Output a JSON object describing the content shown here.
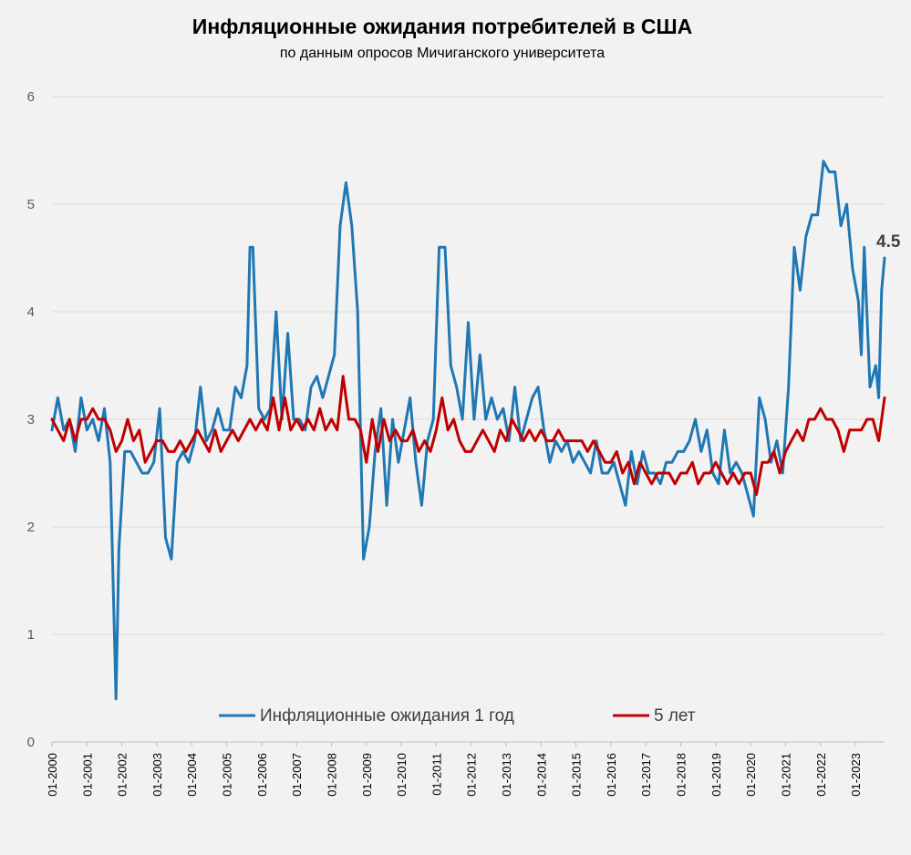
{
  "chart_data": {
    "type": "line",
    "title": "Инфляционные ожидания потребителей в США",
    "subtitle": "по данным опросов Мичиганского университета",
    "ylim": [
      0,
      6
    ],
    "yticks": [
      0,
      1,
      2,
      3,
      4,
      5,
      6
    ],
    "x_tick_labels": [
      "01-2000",
      "01-2001",
      "01-2002",
      "01-2003",
      "01-2004",
      "01-2005",
      "01-2006",
      "01-2007",
      "01-2008",
      "01-2009",
      "01-2010",
      "01-2011",
      "01-2012",
      "01-2013",
      "01-2014",
      "01-2015",
      "01-2016",
      "01-2017",
      "01-2018",
      "01-2019",
      "01-2020",
      "01-2021",
      "01-2022",
      "01-2023"
    ],
    "x_start": "01-2000",
    "x_end": "11-2023",
    "grid": true,
    "legend_position": "bottom",
    "end_annotation": "4.5",
    "colors": {
      "one_year": "#1f77b4",
      "five_year": "#c00000"
    },
    "series": [
      {
        "name": "Инфляционные ожидания 1 год",
        "points": [
          [
            "2000-01",
            2.9
          ],
          [
            "2000-03",
            3.2
          ],
          [
            "2000-05",
            2.9
          ],
          [
            "2000-07",
            3.0
          ],
          [
            "2000-09",
            2.7
          ],
          [
            "2000-11",
            3.2
          ],
          [
            "2001-01",
            2.9
          ],
          [
            "2001-03",
            3.0
          ],
          [
            "2001-05",
            2.8
          ],
          [
            "2001-07",
            3.1
          ],
          [
            "2001-09",
            2.6
          ],
          [
            "2001-11",
            0.4
          ],
          [
            "2001-12",
            1.8
          ],
          [
            "2002-02",
            2.7
          ],
          [
            "2002-04",
            2.7
          ],
          [
            "2002-06",
            2.6
          ],
          [
            "2002-08",
            2.5
          ],
          [
            "2002-10",
            2.5
          ],
          [
            "2002-12",
            2.6
          ],
          [
            "2003-02",
            3.1
          ],
          [
            "2003-04",
            1.9
          ],
          [
            "2003-06",
            1.7
          ],
          [
            "2003-08",
            2.6
          ],
          [
            "2003-10",
            2.7
          ],
          [
            "2003-12",
            2.6
          ],
          [
            "2004-02",
            2.8
          ],
          [
            "2004-04",
            3.3
          ],
          [
            "2004-06",
            2.8
          ],
          [
            "2004-08",
            2.9
          ],
          [
            "2004-10",
            3.1
          ],
          [
            "2004-12",
            2.9
          ],
          [
            "2005-02",
            2.9
          ],
          [
            "2005-04",
            3.3
          ],
          [
            "2005-06",
            3.2
          ],
          [
            "2005-08",
            3.5
          ],
          [
            "2005-09",
            4.6
          ],
          [
            "2005-10",
            4.6
          ],
          [
            "2005-12",
            3.1
          ],
          [
            "2006-02",
            3.0
          ],
          [
            "2006-04",
            3.1
          ],
          [
            "2006-06",
            4.0
          ],
          [
            "2006-08",
            3.0
          ],
          [
            "2006-10",
            3.8
          ],
          [
            "2006-12",
            3.0
          ],
          [
            "2007-02",
            3.0
          ],
          [
            "2007-04",
            2.9
          ],
          [
            "2007-06",
            3.3
          ],
          [
            "2007-08",
            3.4
          ],
          [
            "2007-10",
            3.2
          ],
          [
            "2007-12",
            3.4
          ],
          [
            "2008-02",
            3.6
          ],
          [
            "2008-04",
            4.8
          ],
          [
            "2008-06",
            5.2
          ],
          [
            "2008-08",
            4.8
          ],
          [
            "2008-10",
            4.0
          ],
          [
            "2008-12",
            1.7
          ],
          [
            "2009-02",
            2.0
          ],
          [
            "2009-04",
            2.7
          ],
          [
            "2009-06",
            3.1
          ],
          [
            "2009-08",
            2.2
          ],
          [
            "2009-10",
            3.0
          ],
          [
            "2009-12",
            2.6
          ],
          [
            "2010-02",
            2.9
          ],
          [
            "2010-04",
            3.2
          ],
          [
            "2010-06",
            2.6
          ],
          [
            "2010-08",
            2.2
          ],
          [
            "2010-10",
            2.8
          ],
          [
            "2010-12",
            3.0
          ],
          [
            "2011-02",
            4.6
          ],
          [
            "2011-04",
            4.6
          ],
          [
            "2011-06",
            3.5
          ],
          [
            "2011-08",
            3.3
          ],
          [
            "2011-10",
            3.0
          ],
          [
            "2011-12",
            3.9
          ],
          [
            "2012-02",
            3.0
          ],
          [
            "2012-04",
            3.6
          ],
          [
            "2012-06",
            3.0
          ],
          [
            "2012-08",
            3.2
          ],
          [
            "2012-10",
            3.0
          ],
          [
            "2012-12",
            3.1
          ],
          [
            "2013-02",
            2.8
          ],
          [
            "2013-04",
            3.3
          ],
          [
            "2013-06",
            2.8
          ],
          [
            "2013-08",
            3.0
          ],
          [
            "2013-10",
            3.2
          ],
          [
            "2013-12",
            3.3
          ],
          [
            "2014-02",
            2.9
          ],
          [
            "2014-04",
            2.6
          ],
          [
            "2014-06",
            2.8
          ],
          [
            "2014-08",
            2.7
          ],
          [
            "2014-10",
            2.8
          ],
          [
            "2014-12",
            2.6
          ],
          [
            "2015-02",
            2.7
          ],
          [
            "2015-04",
            2.6
          ],
          [
            "2015-06",
            2.5
          ],
          [
            "2015-08",
            2.8
          ],
          [
            "2015-10",
            2.5
          ],
          [
            "2015-12",
            2.5
          ],
          [
            "2016-02",
            2.6
          ],
          [
            "2016-04",
            2.4
          ],
          [
            "2016-06",
            2.2
          ],
          [
            "2016-08",
            2.7
          ],
          [
            "2016-10",
            2.4
          ],
          [
            "2016-12",
            2.7
          ],
          [
            "2017-02",
            2.5
          ],
          [
            "2017-04",
            2.5
          ],
          [
            "2017-06",
            2.4
          ],
          [
            "2017-08",
            2.6
          ],
          [
            "2017-10",
            2.6
          ],
          [
            "2017-12",
            2.7
          ],
          [
            "2018-02",
            2.7
          ],
          [
            "2018-04",
            2.8
          ],
          [
            "2018-06",
            3.0
          ],
          [
            "2018-08",
            2.7
          ],
          [
            "2018-10",
            2.9
          ],
          [
            "2018-12",
            2.5
          ],
          [
            "2019-02",
            2.4
          ],
          [
            "2019-04",
            2.9
          ],
          [
            "2019-06",
            2.5
          ],
          [
            "2019-08",
            2.6
          ],
          [
            "2019-10",
            2.5
          ],
          [
            "2019-12",
            2.3
          ],
          [
            "2020-02",
            2.1
          ],
          [
            "2020-04",
            3.2
          ],
          [
            "2020-06",
            3.0
          ],
          [
            "2020-08",
            2.6
          ],
          [
            "2020-10",
            2.8
          ],
          [
            "2020-12",
            2.5
          ],
          [
            "2021-02",
            3.3
          ],
          [
            "2021-04",
            4.6
          ],
          [
            "2021-06",
            4.2
          ],
          [
            "2021-08",
            4.7
          ],
          [
            "2021-10",
            4.9
          ],
          [
            "2021-12",
            4.9
          ],
          [
            "2022-02",
            5.4
          ],
          [
            "2022-04",
            5.3
          ],
          [
            "2022-06",
            5.3
          ],
          [
            "2022-08",
            4.8
          ],
          [
            "2022-10",
            5.0
          ],
          [
            "2022-12",
            4.4
          ],
          [
            "2023-02",
            4.1
          ],
          [
            "2023-03",
            3.6
          ],
          [
            "2023-04",
            4.6
          ],
          [
            "2023-06",
            3.3
          ],
          [
            "2023-08",
            3.5
          ],
          [
            "2023-09",
            3.2
          ],
          [
            "2023-10",
            4.2
          ],
          [
            "2023-11",
            4.5
          ]
        ]
      },
      {
        "name": "5 лет",
        "points": [
          [
            "2000-01",
            3.0
          ],
          [
            "2000-03",
            2.9
          ],
          [
            "2000-05",
            2.8
          ],
          [
            "2000-07",
            3.0
          ],
          [
            "2000-09",
            2.8
          ],
          [
            "2000-11",
            3.0
          ],
          [
            "2001-01",
            3.0
          ],
          [
            "2001-03",
            3.1
          ],
          [
            "2001-05",
            3.0
          ],
          [
            "2001-07",
            3.0
          ],
          [
            "2001-09",
            2.9
          ],
          [
            "2001-11",
            2.7
          ],
          [
            "2002-01",
            2.8
          ],
          [
            "2002-03",
            3.0
          ],
          [
            "2002-05",
            2.8
          ],
          [
            "2002-07",
            2.9
          ],
          [
            "2002-09",
            2.6
          ],
          [
            "2002-11",
            2.7
          ],
          [
            "2003-01",
            2.8
          ],
          [
            "2003-03",
            2.8
          ],
          [
            "2003-05",
            2.7
          ],
          [
            "2003-07",
            2.7
          ],
          [
            "2003-09",
            2.8
          ],
          [
            "2003-11",
            2.7
          ],
          [
            "2004-01",
            2.8
          ],
          [
            "2004-03",
            2.9
          ],
          [
            "2004-05",
            2.8
          ],
          [
            "2004-07",
            2.7
          ],
          [
            "2004-09",
            2.9
          ],
          [
            "2004-11",
            2.7
          ],
          [
            "2005-01",
            2.8
          ],
          [
            "2005-03",
            2.9
          ],
          [
            "2005-05",
            2.8
          ],
          [
            "2005-07",
            2.9
          ],
          [
            "2005-09",
            3.0
          ],
          [
            "2005-11",
            2.9
          ],
          [
            "2006-01",
            3.0
          ],
          [
            "2006-03",
            2.9
          ],
          [
            "2006-05",
            3.2
          ],
          [
            "2006-07",
            2.9
          ],
          [
            "2006-09",
            3.2
          ],
          [
            "2006-11",
            2.9
          ],
          [
            "2007-01",
            3.0
          ],
          [
            "2007-03",
            2.9
          ],
          [
            "2007-05",
            3.0
          ],
          [
            "2007-07",
            2.9
          ],
          [
            "2007-09",
            3.1
          ],
          [
            "2007-11",
            2.9
          ],
          [
            "2008-01",
            3.0
          ],
          [
            "2008-03",
            2.9
          ],
          [
            "2008-05",
            3.4
          ],
          [
            "2008-07",
            3.0
          ],
          [
            "2008-09",
            3.0
          ],
          [
            "2008-11",
            2.9
          ],
          [
            "2009-01",
            2.6
          ],
          [
            "2009-03",
            3.0
          ],
          [
            "2009-05",
            2.7
          ],
          [
            "2009-07",
            3.0
          ],
          [
            "2009-09",
            2.8
          ],
          [
            "2009-11",
            2.9
          ],
          [
            "2010-01",
            2.8
          ],
          [
            "2010-03",
            2.8
          ],
          [
            "2010-05",
            2.9
          ],
          [
            "2010-07",
            2.7
          ],
          [
            "2010-09",
            2.8
          ],
          [
            "2010-11",
            2.7
          ],
          [
            "2011-01",
            2.9
          ],
          [
            "2011-03",
            3.2
          ],
          [
            "2011-05",
            2.9
          ],
          [
            "2011-07",
            3.0
          ],
          [
            "2011-09",
            2.8
          ],
          [
            "2011-11",
            2.7
          ],
          [
            "2012-01",
            2.7
          ],
          [
            "2012-03",
            2.8
          ],
          [
            "2012-05",
            2.9
          ],
          [
            "2012-07",
            2.8
          ],
          [
            "2012-09",
            2.7
          ],
          [
            "2012-11",
            2.9
          ],
          [
            "2013-01",
            2.8
          ],
          [
            "2013-03",
            3.0
          ],
          [
            "2013-05",
            2.9
          ],
          [
            "2013-07",
            2.8
          ],
          [
            "2013-09",
            2.9
          ],
          [
            "2013-11",
            2.8
          ],
          [
            "2014-01",
            2.9
          ],
          [
            "2014-03",
            2.8
          ],
          [
            "2014-05",
            2.8
          ],
          [
            "2014-07",
            2.9
          ],
          [
            "2014-09",
            2.8
          ],
          [
            "2014-11",
            2.8
          ],
          [
            "2015-01",
            2.8
          ],
          [
            "2015-03",
            2.8
          ],
          [
            "2015-05",
            2.7
          ],
          [
            "2015-07",
            2.8
          ],
          [
            "2015-09",
            2.7
          ],
          [
            "2015-11",
            2.6
          ],
          [
            "2016-01",
            2.6
          ],
          [
            "2016-03",
            2.7
          ],
          [
            "2016-05",
            2.5
          ],
          [
            "2016-07",
            2.6
          ],
          [
            "2016-09",
            2.4
          ],
          [
            "2016-11",
            2.6
          ],
          [
            "2017-01",
            2.5
          ],
          [
            "2017-03",
            2.4
          ],
          [
            "2017-05",
            2.5
          ],
          [
            "2017-07",
            2.5
          ],
          [
            "2017-09",
            2.5
          ],
          [
            "2017-11",
            2.4
          ],
          [
            "2018-01",
            2.5
          ],
          [
            "2018-03",
            2.5
          ],
          [
            "2018-05",
            2.6
          ],
          [
            "2018-07",
            2.4
          ],
          [
            "2018-09",
            2.5
          ],
          [
            "2018-11",
            2.5
          ],
          [
            "2019-01",
            2.6
          ],
          [
            "2019-03",
            2.5
          ],
          [
            "2019-05",
            2.4
          ],
          [
            "2019-07",
            2.5
          ],
          [
            "2019-09",
            2.4
          ],
          [
            "2019-11",
            2.5
          ],
          [
            "2020-01",
            2.5
          ],
          [
            "2020-03",
            2.3
          ],
          [
            "2020-05",
            2.6
          ],
          [
            "2020-07",
            2.6
          ],
          [
            "2020-09",
            2.7
          ],
          [
            "2020-11",
            2.5
          ],
          [
            "2021-01",
            2.7
          ],
          [
            "2021-03",
            2.8
          ],
          [
            "2021-05",
            2.9
          ],
          [
            "2021-07",
            2.8
          ],
          [
            "2021-09",
            3.0
          ],
          [
            "2021-11",
            3.0
          ],
          [
            "2022-01",
            3.1
          ],
          [
            "2022-03",
            3.0
          ],
          [
            "2022-05",
            3.0
          ],
          [
            "2022-07",
            2.9
          ],
          [
            "2022-09",
            2.7
          ],
          [
            "2022-11",
            2.9
          ],
          [
            "2023-01",
            2.9
          ],
          [
            "2023-03",
            2.9
          ],
          [
            "2023-05",
            3.0
          ],
          [
            "2023-07",
            3.0
          ],
          [
            "2023-09",
            2.8
          ],
          [
            "2023-11",
            3.2
          ]
        ]
      }
    ]
  }
}
